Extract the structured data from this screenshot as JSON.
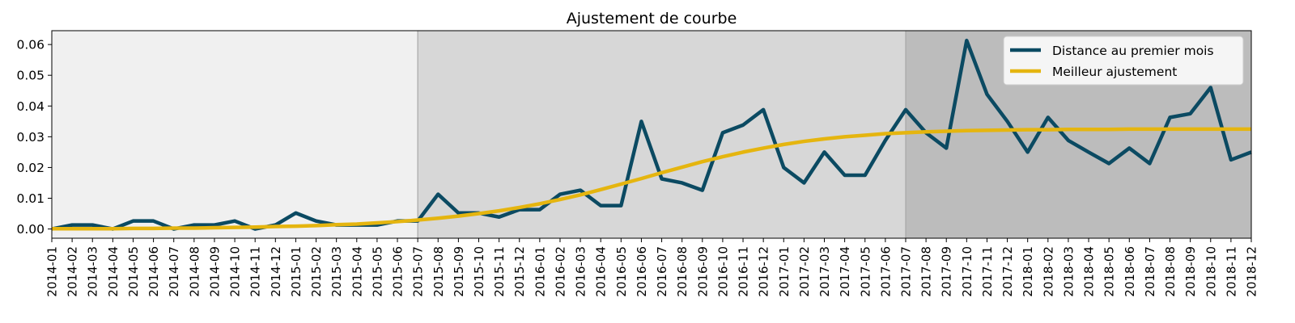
{
  "chart_data": {
    "type": "line",
    "title": "Ajustement de courbe",
    "xlabel": "",
    "ylabel": "",
    "ylim": [
      -0.003,
      0.0645
    ],
    "yticks": [
      0.0,
      0.01,
      0.02,
      0.03,
      0.04,
      0.05,
      0.06
    ],
    "ytick_labels": [
      "0.00",
      "0.01",
      "0.02",
      "0.03",
      "0.04",
      "0.05",
      "0.06"
    ],
    "categories": [
      "2014-01",
      "2014-02",
      "2014-03",
      "2014-04",
      "2014-05",
      "2014-06",
      "2014-07",
      "2014-08",
      "2014-09",
      "2014-10",
      "2014-11",
      "2014-12",
      "2015-01",
      "2015-02",
      "2015-03",
      "2015-04",
      "2015-05",
      "2015-06",
      "2015-07",
      "2015-08",
      "2015-09",
      "2015-10",
      "2015-11",
      "2015-12",
      "2016-01",
      "2016-02",
      "2016-03",
      "2016-04",
      "2016-05",
      "2016-06",
      "2016-07",
      "2016-08",
      "2016-09",
      "2016-10",
      "2016-11",
      "2016-12",
      "2017-01",
      "2017-02",
      "2017-03",
      "2017-04",
      "2017-05",
      "2017-06",
      "2017-07",
      "2017-08",
      "2017-09",
      "2017-10",
      "2017-11",
      "2017-12",
      "2018-01",
      "2018-02",
      "2018-03",
      "2018-04",
      "2018-05",
      "2018-06",
      "2018-07",
      "2018-08",
      "2018-09",
      "2018-10",
      "2018-11",
      "2018-12"
    ],
    "shaded_regions": [
      {
        "from": "2014-01",
        "to": "2015-07",
        "color": "#f0f0f0"
      },
      {
        "from": "2015-07",
        "to": "2017-07",
        "color": "#d7d7d7"
      },
      {
        "from": "2017-07",
        "to": "2018-12",
        "color": "#bcbcbc"
      }
    ],
    "series": [
      {
        "name": "Distance au premier mois",
        "color": "#0b4a62",
        "values": [
          0.0,
          0.0013,
          0.0013,
          0.0,
          0.0026,
          0.0026,
          0.0,
          0.0013,
          0.0013,
          0.0026,
          0.0,
          0.0013,
          0.0052,
          0.0026,
          0.0013,
          0.0013,
          0.0013,
          0.0026,
          0.0026,
          0.0113,
          0.0052,
          0.0052,
          0.0039,
          0.0063,
          0.0063,
          0.0113,
          0.0126,
          0.0076,
          0.0076,
          0.035,
          0.0163,
          0.015,
          0.0126,
          0.0313,
          0.0338,
          0.0388,
          0.02,
          0.015,
          0.025,
          0.0175,
          0.0175,
          0.0288,
          0.0388,
          0.0313,
          0.0263,
          0.0613,
          0.0438,
          0.035,
          0.025,
          0.0363,
          0.0288,
          0.025,
          0.0213,
          0.0263,
          0.0213,
          0.0363,
          0.0375,
          0.046,
          0.0225,
          0.025
        ]
      },
      {
        "name": "Meilleur ajustement",
        "color": "#e5b50f",
        "values": [
          0.0001,
          0.0001,
          0.0001,
          0.0001,
          0.0002,
          0.0002,
          0.0003,
          0.0003,
          0.0004,
          0.0005,
          0.0006,
          0.0008,
          0.0009,
          0.0011,
          0.0014,
          0.0016,
          0.002,
          0.0024,
          0.0029,
          0.0035,
          0.0042,
          0.005,
          0.0059,
          0.007,
          0.0082,
          0.0096,
          0.0111,
          0.0128,
          0.0146,
          0.0164,
          0.0183,
          0.0201,
          0.0219,
          0.0235,
          0.025,
          0.0263,
          0.0275,
          0.0285,
          0.0293,
          0.03,
          0.0305,
          0.031,
          0.0313,
          0.0316,
          0.0318,
          0.032,
          0.0321,
          0.0322,
          0.0323,
          0.0323,
          0.0324,
          0.0324,
          0.0324,
          0.0325,
          0.0325,
          0.0325,
          0.0325,
          0.0325,
          0.0325,
          0.0325
        ]
      }
    ],
    "legend": {
      "position": "upper right"
    },
    "grid": false
  }
}
